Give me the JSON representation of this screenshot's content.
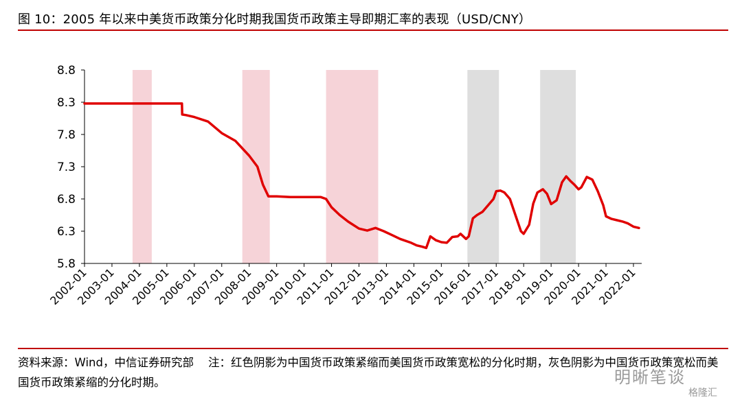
{
  "header": {
    "title": "图 10：2005 年以来中美货币政策分化时期我国货币政策主导即期汇率的表现（USD/CNY）"
  },
  "footer": {
    "source": "资料来源：Wind，中信证券研究部",
    "note": "注：红色阴影为中国货币政策紧缩而美国货币政策宽松的分化时期，灰色阴影为中国货币政策宽松而美国货币政策紧缩的分化时期。"
  },
  "watermark": {
    "main": "明晰笔谈",
    "sub": "格隆汇"
  },
  "colors": {
    "line": "#e00000",
    "red_shade": "#f6d3d8",
    "grey_shade": "#dedede",
    "rule": "#c00000"
  },
  "chart_data": {
    "type": "line",
    "title": "",
    "xlabel": "",
    "ylabel": "",
    "ylim": [
      5.8,
      8.8
    ],
    "yticks": [
      "8.8",
      "8.3",
      "7.8",
      "7.3",
      "6.8",
      "6.3",
      "5.8"
    ],
    "xticks": [
      "2002-01",
      "2003-01",
      "2004-01",
      "2005-01",
      "2006-01",
      "2007-01",
      "2008-01",
      "2009-01",
      "2010-01",
      "2011-01",
      "2012-01",
      "2013-01",
      "2014-01",
      "2015-01",
      "2016-01",
      "2017-01",
      "2018-01",
      "2019-01",
      "2020-01",
      "2021-01",
      "2022-01"
    ],
    "xlim": [
      2002.0,
      2022.3
    ],
    "grid": false,
    "legend": "none",
    "shaded_periods": [
      {
        "type": "red",
        "start": 2003.75,
        "end": 2004.45
      },
      {
        "type": "red",
        "start": 2007.75,
        "end": 2008.75
      },
      {
        "type": "red",
        "start": 2010.8,
        "end": 2012.7
      },
      {
        "type": "grey",
        "start": 2015.95,
        "end": 2017.1
      },
      {
        "type": "grey",
        "start": 2018.6,
        "end": 2019.9
      }
    ],
    "series": [
      {
        "x": [
          2002.0,
          2005.55,
          2005.56,
          2005.7,
          2006.0,
          2006.5,
          2007.0,
          2007.5,
          2008.0,
          2008.3,
          2008.5,
          2008.7,
          2009.0,
          2009.5,
          2010.0,
          2010.45,
          2010.6,
          2010.8,
          2011.0,
          2011.3,
          2011.6,
          2012.0,
          2012.3,
          2012.6,
          2012.9,
          2013.2,
          2013.5,
          2013.9,
          2014.1,
          2014.3,
          2014.45,
          2014.6,
          2014.8,
          2015.0,
          2015.2,
          2015.4,
          2015.6,
          2015.7,
          2015.9,
          2016.0,
          2016.15,
          2016.3,
          2016.5,
          2016.7,
          2016.9,
          2017.0,
          2017.15,
          2017.3,
          2017.5,
          2017.7,
          2017.9,
          2018.0,
          2018.2,
          2018.35,
          2018.5,
          2018.7,
          2018.85,
          2019.0,
          2019.2,
          2019.4,
          2019.55,
          2019.7,
          2019.85,
          2020.0,
          2020.1,
          2020.3,
          2020.5,
          2020.7,
          2020.9,
          2021.0,
          2021.2,
          2021.4,
          2021.6,
          2021.8,
          2022.0,
          2022.2
        ],
        "y": [
          8.28,
          8.28,
          8.11,
          8.1,
          8.07,
          8.0,
          7.82,
          7.7,
          7.47,
          7.3,
          7.02,
          6.84,
          6.84,
          6.83,
          6.83,
          6.83,
          6.83,
          6.8,
          6.67,
          6.55,
          6.45,
          6.34,
          6.31,
          6.35,
          6.3,
          6.24,
          6.18,
          6.12,
          6.08,
          6.06,
          6.04,
          6.22,
          6.16,
          6.13,
          6.12,
          6.21,
          6.22,
          6.26,
          6.18,
          6.22,
          6.5,
          6.55,
          6.6,
          6.7,
          6.8,
          6.92,
          6.93,
          6.9,
          6.8,
          6.55,
          6.3,
          6.26,
          6.4,
          6.73,
          6.9,
          6.95,
          6.88,
          6.72,
          6.78,
          7.06,
          7.15,
          7.08,
          7.02,
          6.95,
          6.98,
          7.14,
          7.1,
          6.92,
          6.7,
          6.53,
          6.49,
          6.47,
          6.45,
          6.42,
          6.37,
          6.35
        ]
      }
    ]
  }
}
